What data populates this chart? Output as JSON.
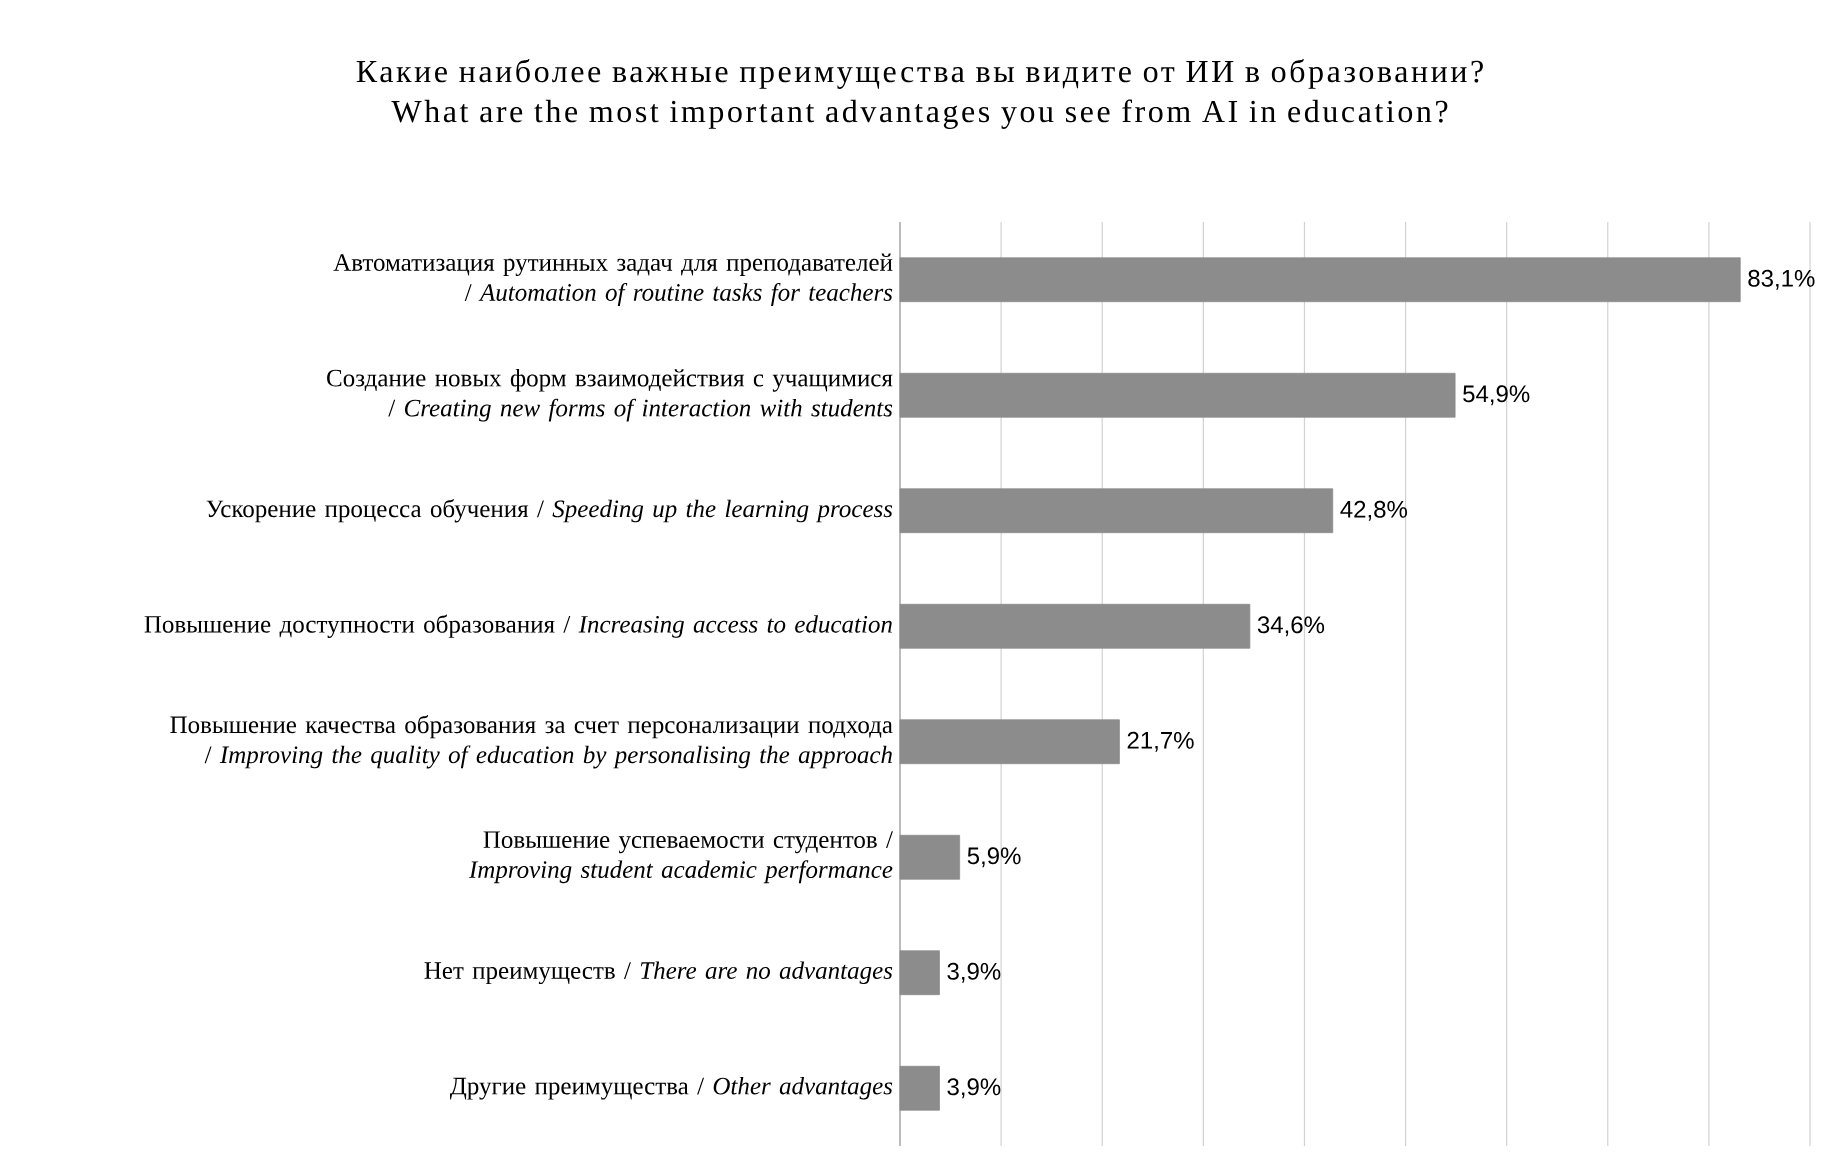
{
  "chart_data": {
    "type": "bar",
    "orientation": "horizontal",
    "title": "Какие наиболее важные преимущества вы видите от ИИ в образовании? What are the most important advantages you see from AI in education?",
    "categories": [
      "Автоматизация рутинных задач для преподавателей / *Automation of routine tasks for teachers*",
      "Создание новых форм взаимодействия с учащимися / *Creating new forms of interaction with students*",
      "Ускорение процесса обучения / *Speeding up the learning process*",
      "Повышение доступности образования / *Increasing access to education*",
      "Повышение качества образования за счет персонализации подхода / *Improving the quality of education by personalising the approach*",
      "Повышение успеваемости студентов / *Improving student academic performance*",
      "Нет преимуществ / *There are no advantages*",
      "Другие преимущества / *Other advantages*"
    ],
    "values": [
      83.1,
      54.9,
      42.8,
      34.6,
      21.7,
      5.9,
      3.9,
      3.9
    ],
    "value_labels": [
      "83,1%",
      "54,9%",
      "42,8%",
      "34,6%",
      "21,7%",
      "5,9%",
      "3,9%",
      "3,9%"
    ],
    "color": "#8c8c8c",
    "xlim": [
      0,
      90
    ],
    "xticks": [
      {
        "value": 0,
        "label": null
      },
      {
        "value": 10,
        "label": null
      },
      {
        "value": 20,
        "label": null
      },
      {
        "value": 30,
        "label": null
      },
      {
        "value": 40,
        "label": null
      },
      {
        "value": 50,
        "label": null
      },
      {
        "value": 60,
        "label": null
      },
      {
        "value": 70,
        "label": null
      },
      {
        "value": 80,
        "label": null
      },
      {
        "value": 90,
        "label": null
      }
    ],
    "grid": "x",
    "tick_labels": "y"
  }
}
